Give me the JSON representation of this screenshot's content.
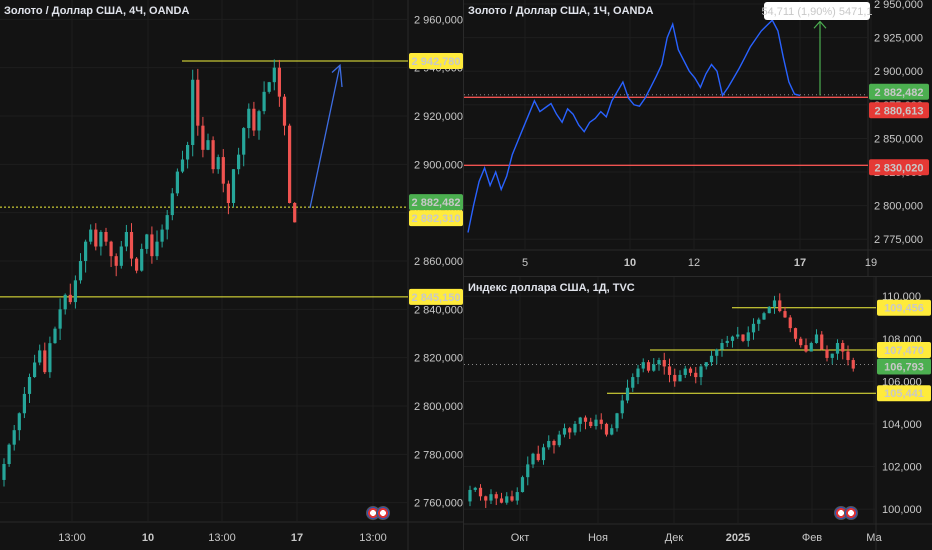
{
  "colors": {
    "up": "#26a69a",
    "down": "#ef5350",
    "yellow": "#f2f23c",
    "red_level": "#ef5350",
    "line_series": "#2962ff",
    "arrow_blue": "#3d6de3",
    "arrow_green": "#4caf50",
    "green_badge": "#4caf50",
    "yellow_badge": "#ffeb3b",
    "red_badge": "#e53935"
  },
  "chart_data": [
    {
      "type": "candlestick",
      "title": "Золото / Доллар США, 4Ч, OANDA",
      "xlabel": "",
      "ylabel": "",
      "ylim": [
        2752,
        2968
      ],
      "y_ticks": [
        "2 960,000",
        "2 940,000",
        "2 920,000",
        "2 900,000",
        "2 880,000",
        "2 860,000",
        "2 840,000",
        "2 820,000",
        "2 800,000",
        "2 780,000",
        "2 760,000"
      ],
      "x_ticks": [
        "13:00",
        "10",
        "13:00",
        "17",
        "13:00"
      ],
      "levels": [
        2942.78,
        2882.31,
        2845.15
      ],
      "price_labels": [
        "2 942,780",
        "2 882,482",
        "2 882,310",
        "2 845,150"
      ],
      "series": [
        {
          "name": "",
          "closes": [
            2776,
            2784,
            2790,
            2797,
            2805,
            2812,
            2818,
            2823,
            2814,
            2826,
            2832,
            2840,
            2846,
            2843,
            2852,
            2860,
            2868,
            2873,
            2866,
            2872,
            2868,
            2862,
            2858,
            2866,
            2872,
            2861,
            2856,
            2865,
            2871,
            2862,
            2868,
            2873,
            2879,
            2888,
            2897,
            2902,
            2908,
            2935,
            2916,
            2906,
            2910,
            2898,
            2903,
            2892,
            2884,
            2898,
            2904,
            2915,
            2923,
            2914,
            2922,
            2930,
            2934,
            2940,
            2928,
            2916,
            2884,
            2876
          ]
        }
      ]
    },
    {
      "type": "line",
      "title": "Золото / Доллар США, 1Ч, OANDA",
      "xlabel": "",
      "ylabel": "",
      "ylim": [
        2767,
        2953
      ],
      "y_ticks": [
        "2 950,000",
        "2 925,000",
        "2 900,000",
        "2 875,000",
        "2 850,000",
        "2 825,000",
        "2 800,000",
        "2 775,000"
      ],
      "x_ticks": [
        "5",
        "10",
        "12",
        "17",
        "19"
      ],
      "levels": [
        2880.613,
        2830.02
      ],
      "price_labels": [
        "2 882,482",
        "2 880,613",
        "2 830,020"
      ],
      "annotation": "54,711 (1,90%) 5471,1",
      "series": [
        {
          "name": "",
          "values": [
            2780,
            2800,
            2818,
            2828,
            2815,
            2825,
            2812,
            2822,
            2838,
            2848,
            2858,
            2868,
            2878,
            2870,
            2873,
            2876,
            2868,
            2862,
            2872,
            2868,
            2860,
            2855,
            2862,
            2865,
            2870,
            2866,
            2878,
            2885,
            2892,
            2880,
            2875,
            2874,
            2880,
            2888,
            2896,
            2905,
            2925,
            2935,
            2916,
            2908,
            2900,
            2895,
            2888,
            2898,
            2905,
            2900,
            2882,
            2888,
            2895,
            2902,
            2910,
            2918,
            2924,
            2930,
            2934,
            2938,
            2930,
            2910,
            2892,
            2883,
            2882
          ]
        }
      ]
    },
    {
      "type": "candlestick",
      "title": "Индекс доллара США, 1Д, TVC",
      "xlabel": "",
      "ylabel": "",
      "ylim": [
        99.3,
        110.9
      ],
      "y_ticks": [
        "110,000",
        "108,000",
        "106,000",
        "104,000",
        "102,000",
        "100,000"
      ],
      "x_ticks": [
        "Окт",
        "Ноя",
        "Дек",
        "2025",
        "Фев",
        "Ма"
      ],
      "levels": [
        109.456,
        107.47,
        105.441
      ],
      "price_labels": [
        "109,456",
        "107,470",
        "106,793",
        "105,441"
      ],
      "series": [
        {
          "name": "",
          "closes": [
            100.9,
            101.0,
            100.6,
            100.4,
            100.7,
            100.5,
            100.3,
            100.6,
            100.4,
            100.8,
            101.5,
            102.1,
            102.6,
            102.3,
            102.9,
            103.2,
            103.0,
            103.5,
            103.8,
            103.6,
            104.0,
            104.3,
            104.1,
            103.9,
            104.2,
            104.0,
            103.5,
            103.8,
            104.5,
            105.1,
            105.7,
            106.2,
            106.6,
            106.9,
            106.5,
            106.8,
            107.0,
            106.7,
            106.3,
            106.0,
            106.3,
            106.6,
            106.4,
            106.2,
            106.7,
            106.9,
            107.2,
            107.5,
            107.8,
            107.9,
            108.1,
            108.2,
            107.9,
            108.3,
            108.7,
            108.9,
            109.2,
            109.5,
            109.8,
            109.3,
            109.0,
            108.5,
            108.0,
            107.7,
            107.4,
            107.8,
            108.2,
            107.5,
            107.1,
            107.3,
            107.8,
            107.4,
            107.0,
            106.6
          ]
        }
      ]
    }
  ]
}
